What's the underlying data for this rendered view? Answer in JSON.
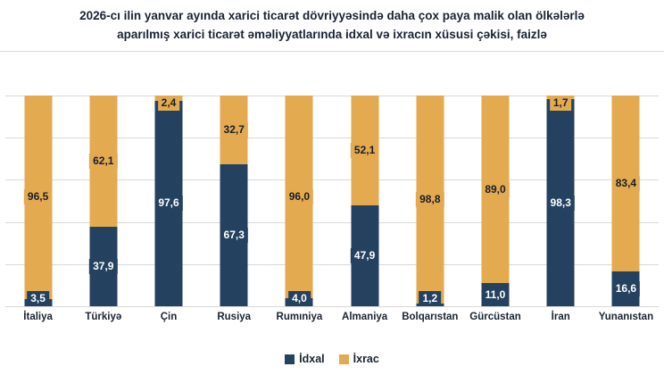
{
  "title": {
    "lines": [
      "2026-cı ilin yanvar ayında xarici ticarət dövriyyəsində daha çox paya malik olan ölkələrlə",
      "aparılmış xarici ticarət əməliyyatlarında idxal və ixracın xüsusi çəkisi, faizlə"
    ]
  },
  "chart_data": {
    "type": "bar",
    "stacked": true,
    "orientation": "vertical",
    "categories": [
      "İtaliya",
      "Türkiyə",
      "Çin",
      "Rusiya",
      "Rumıniya",
      "Almaniya",
      "Bolqarıstan",
      "Gürcüstan",
      "İran",
      "Yunanıstan"
    ],
    "series": [
      {
        "name": "İdxal",
        "color": "#24425f",
        "label_color": "#ffffff",
        "values": [
          3.5,
          37.9,
          97.6,
          67.3,
          4.0,
          47.9,
          1.2,
          11.0,
          98.3,
          16.6
        ]
      },
      {
        "name": "İxrac",
        "color": "#e3aa50",
        "label_color": "#1a1f2b",
        "values": [
          96.5,
          62.1,
          2.4,
          32.7,
          96.0,
          52.1,
          98.8,
          89.0,
          1.7,
          83.4
        ]
      }
    ],
    "ylim": [
      0,
      100
    ],
    "gridlines": [
      0,
      20,
      40,
      60,
      80,
      100
    ],
    "grid_color": "#d9d9d9",
    "legend_position": "bottom",
    "decimal_separator": ",",
    "y_axis_labels_shown": false
  }
}
